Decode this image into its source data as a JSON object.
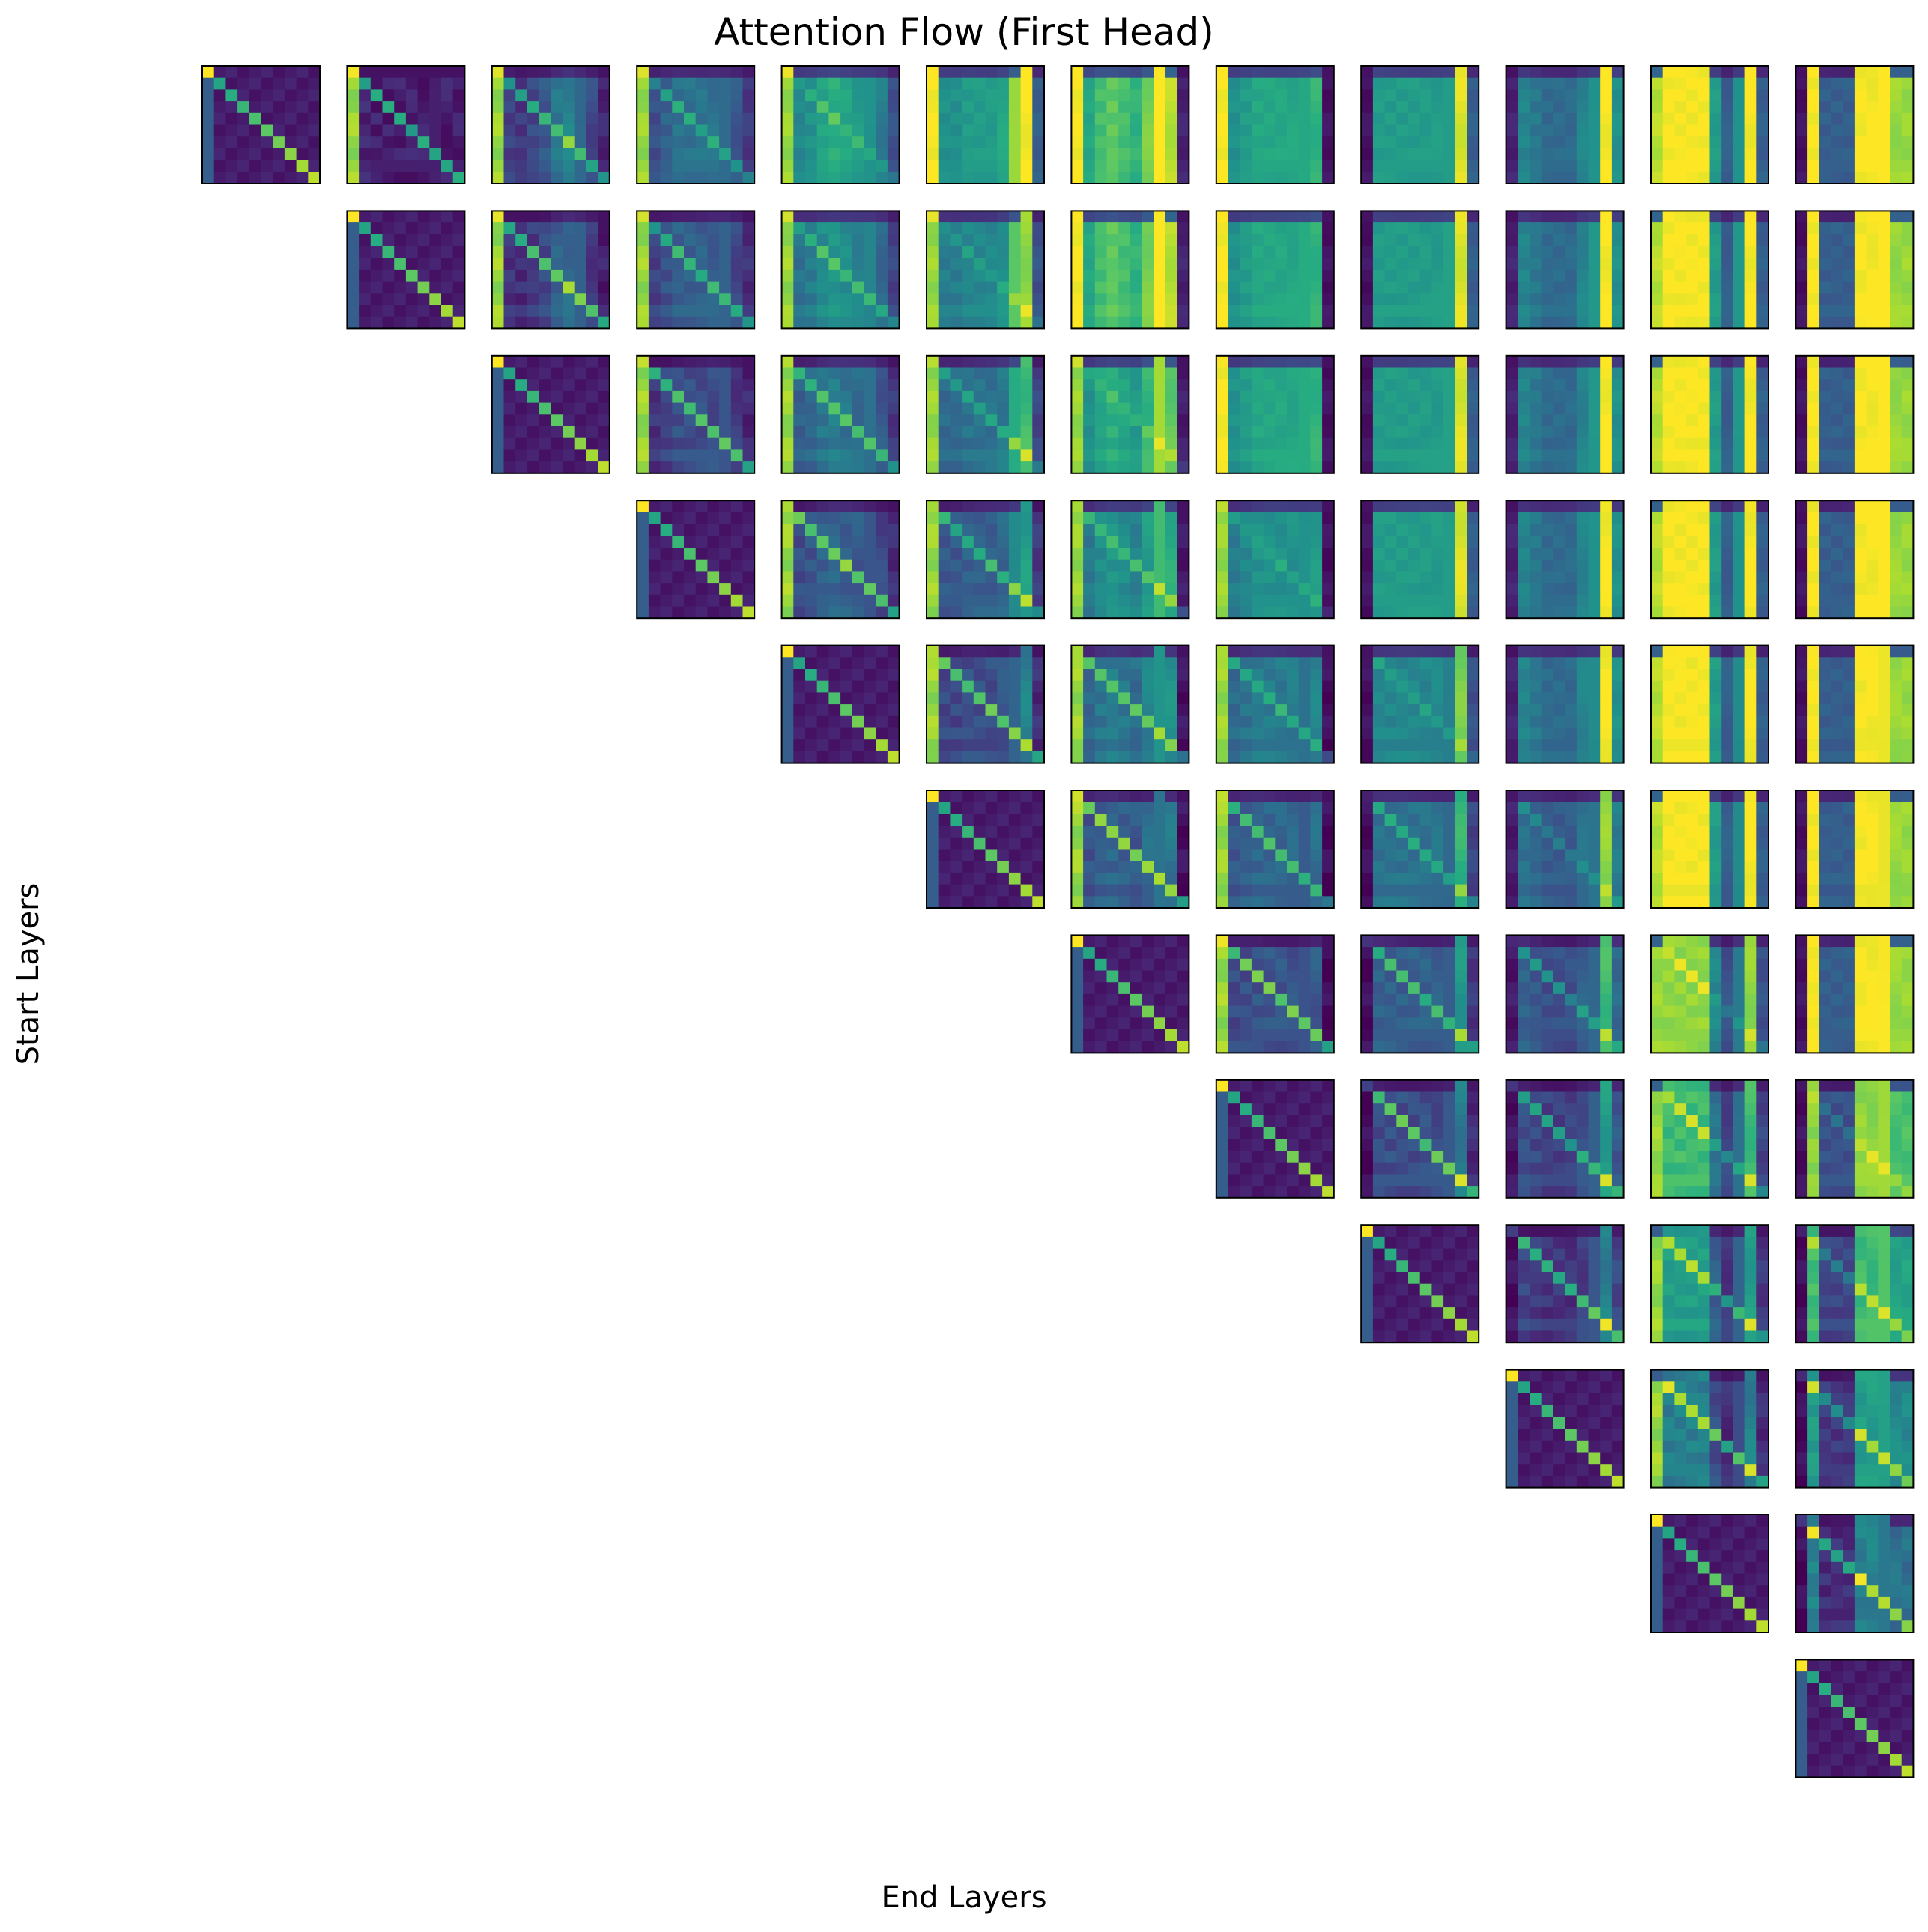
{
  "chart_data": {
    "type": "heatmap",
    "title": "Attention Flow (First Head)",
    "xlabel": "End Layers",
    "ylabel": "Start Layers",
    "layout": "upper-triangular grid of 12 x 12 subplots; row = start layer, column = end layer (column >= row)",
    "n_layers": 12,
    "subplot_matrix_size": 10,
    "colormap": "viridis",
    "color_range": [
      0,
      1
    ],
    "axes_ticks": false,
    "grid": false,
    "legend": "none",
    "column_profiles": [
      [
        1.0,
        0.15,
        0.05,
        0.05,
        0.05,
        0.05,
        0.05,
        0.05,
        0.05,
        0.05
      ],
      [
        1.0,
        0.25,
        0.2,
        0.2,
        0.2,
        0.2,
        0.2,
        0.2,
        0.2,
        0.2
      ],
      [
        1.0,
        0.35,
        0.3,
        0.4,
        0.5,
        0.7,
        0.8,
        0.6,
        0.4,
        0.2
      ],
      [
        1.0,
        0.35,
        0.45,
        0.55,
        0.55,
        0.55,
        0.55,
        0.5,
        0.4,
        0.25
      ],
      [
        1.0,
        0.55,
        0.6,
        0.7,
        0.75,
        0.7,
        0.65,
        0.6,
        0.5,
        0.3
      ],
      [
        1.0,
        0.5,
        0.5,
        0.55,
        0.55,
        0.55,
        0.6,
        0.85,
        1.0,
        0.3
      ],
      [
        1.0,
        0.6,
        0.7,
        0.75,
        0.7,
        0.65,
        0.8,
        1.0,
        0.9,
        0.1
      ],
      [
        1.0,
        0.5,
        0.55,
        0.6,
        0.6,
        0.6,
        0.6,
        0.6,
        0.65,
        0.05
      ],
      [
        0.05,
        0.55,
        0.55,
        0.55,
        0.55,
        0.55,
        0.55,
        0.55,
        0.95,
        0.3
      ],
      [
        0.1,
        0.45,
        0.4,
        0.35,
        0.35,
        0.35,
        0.45,
        0.5,
        1.0,
        0.5
      ],
      [
        0.9,
        1.0,
        1.0,
        1.0,
        1.0,
        0.55,
        0.3,
        0.5,
        1.0,
        0.3
      ],
      [
        0.05,
        1.0,
        0.3,
        0.3,
        0.3,
        1.0,
        1.0,
        1.0,
        0.85,
        0.85
      ]
    ]
  }
}
